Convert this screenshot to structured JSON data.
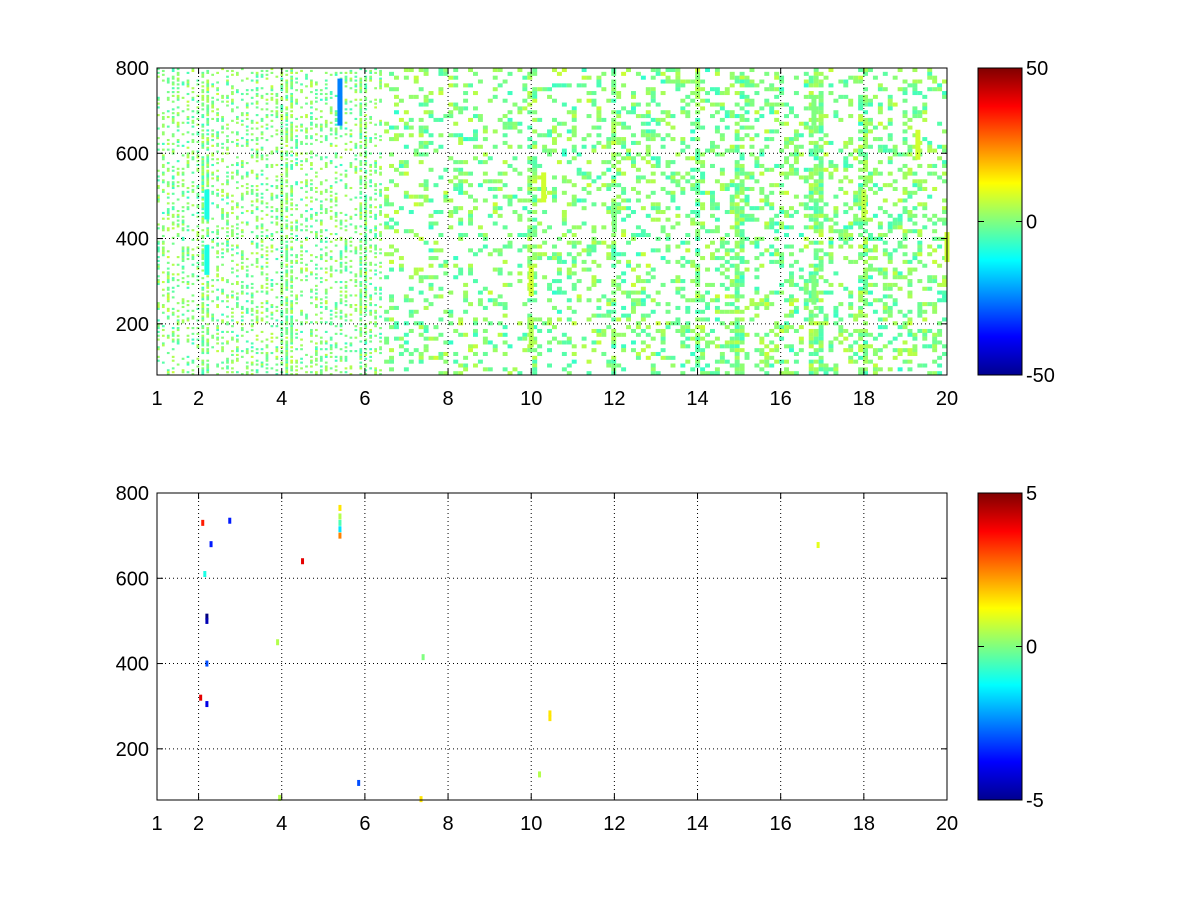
{
  "chart_data": [
    {
      "type": "heatmap",
      "title": "",
      "xlabel": "",
      "ylabel": "",
      "xlim": [
        1,
        20
      ],
      "ylim": [
        80,
        800
      ],
      "grid": true,
      "grid_style": "dotted",
      "xticks": [
        1,
        2,
        4,
        6,
        8,
        10,
        12,
        14,
        16,
        18,
        20
      ],
      "yticks": [
        200,
        400,
        600,
        800
      ],
      "colormap": "jet",
      "colorbar": {
        "placement": "right",
        "range": [
          -50,
          50
        ],
        "ticks": [
          -50,
          0,
          50
        ]
      },
      "dense_columns": [
        2.1,
        2.2,
        4.0,
        4.1,
        4.2,
        5.9,
        6.0,
        10.0,
        12.0,
        14.0,
        15.0,
        16.8,
        17.0,
        18.0
      ],
      "points": [
        {
          "x": 5.4,
          "y": 740,
          "v": -25
        },
        {
          "x": 5.4,
          "y": 700,
          "v": -25
        },
        {
          "x": 2.2,
          "y": 480,
          "v": -10
        },
        {
          "x": 2.2,
          "y": 350,
          "v": -10
        },
        {
          "x": 10.0,
          "y": 300,
          "v": 8
        },
        {
          "x": 10.0,
          "y": 180,
          "v": 5
        },
        {
          "x": 10.3,
          "y": 520,
          "v": 8
        },
        {
          "x": 12.0,
          "y": 450,
          "v": 0
        },
        {
          "x": 16.8,
          "y": 700,
          "v": 0
        },
        {
          "x": 16.8,
          "y": 280,
          "v": 0
        },
        {
          "x": 18.0,
          "y": 480,
          "v": 6
        },
        {
          "x": 19.3,
          "y": 620,
          "v": 8
        },
        {
          "x": 20.0,
          "y": 380,
          "v": 8
        }
      ]
    },
    {
      "type": "heatmap",
      "title": "",
      "xlabel": "",
      "ylabel": "",
      "xlim": [
        1,
        20
      ],
      "ylim": [
        80,
        800
      ],
      "grid": true,
      "grid_style": "dotted",
      "xticks": [
        1,
        2,
        4,
        6,
        8,
        10,
        12,
        14,
        16,
        18,
        20
      ],
      "yticks": [
        200,
        400,
        600,
        800
      ],
      "colormap": "jet",
      "colorbar": {
        "placement": "right",
        "range": [
          -5,
          5
        ],
        "ticks": [
          -5,
          0,
          5
        ]
      },
      "points": [
        {
          "x": 2.1,
          "y": 730,
          "v": 3.5
        },
        {
          "x": 2.75,
          "y": 735,
          "v": -3.5
        },
        {
          "x": 2.3,
          "y": 680,
          "v": -3.5
        },
        {
          "x": 2.15,
          "y": 610,
          "v": -1
        },
        {
          "x": 2.2,
          "y": 510,
          "v": -5
        },
        {
          "x": 2.2,
          "y": 500,
          "v": -4.5
        },
        {
          "x": 2.2,
          "y": 400,
          "v": -3
        },
        {
          "x": 2.2,
          "y": 305,
          "v": -4
        },
        {
          "x": 2.05,
          "y": 320,
          "v": 4
        },
        {
          "x": 3.9,
          "y": 450,
          "v": 0.5
        },
        {
          "x": 3.95,
          "y": 85,
          "v": 0.5
        },
        {
          "x": 4.5,
          "y": 640,
          "v": 4
        },
        {
          "x": 5.4,
          "y": 765,
          "v": 1.5
        },
        {
          "x": 5.4,
          "y": 745,
          "v": 0.5
        },
        {
          "x": 5.4,
          "y": 730,
          "v": -0.5
        },
        {
          "x": 5.4,
          "y": 715,
          "v": -1.5
        },
        {
          "x": 5.4,
          "y": 700,
          "v": 2.5
        },
        {
          "x": 5.85,
          "y": 120,
          "v": -3
        },
        {
          "x": 7.4,
          "y": 415,
          "v": 0
        },
        {
          "x": 7.35,
          "y": 82,
          "v": 1.5
        },
        {
          "x": 10.2,
          "y": 140,
          "v": 0.5
        },
        {
          "x": 10.45,
          "y": 283,
          "v": 1.5
        },
        {
          "x": 10.45,
          "y": 272,
          "v": 1.5
        },
        {
          "x": 16.9,
          "y": 678,
          "v": 1
        }
      ]
    }
  ]
}
